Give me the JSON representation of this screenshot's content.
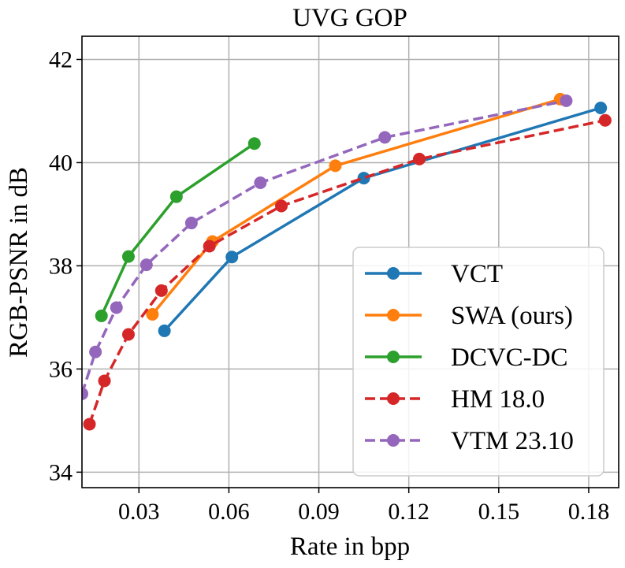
{
  "chart_data": {
    "type": "line",
    "title": "UVG GOP",
    "xlabel": "Rate in bpp",
    "ylabel": "RGB-PSNR in dB",
    "xlim": [
      0.011,
      0.19
    ],
    "ylim": [
      33.7,
      42.45
    ],
    "xticks": [
      0.03,
      0.06,
      0.09,
      0.12,
      0.15,
      0.18
    ],
    "xtick_labels": [
      "0.03",
      "0.06",
      "0.09",
      "0.12",
      "0.15",
      "0.18"
    ],
    "yticks": [
      34,
      36,
      38,
      40,
      42
    ],
    "ytick_labels": [
      "34",
      "36",
      "38",
      "40",
      "42"
    ],
    "grid": true,
    "legend_position": "lower right",
    "series": [
      {
        "name": "VCT",
        "color": "#1f77b4",
        "style": "solid",
        "x": [
          0.0385,
          0.061,
          0.105,
          0.184
        ],
        "y": [
          36.74,
          38.17,
          39.7,
          41.06
        ]
      },
      {
        "name": "SWA (ours)",
        "color": "#ff7f0e",
        "style": "solid",
        "x": [
          0.0345,
          0.0545,
          0.0955,
          0.1705
        ],
        "y": [
          37.06,
          38.47,
          39.94,
          41.23
        ]
      },
      {
        "name": "DCVC-DC",
        "color": "#2ca02c",
        "style": "solid",
        "x": [
          0.0175,
          0.0265,
          0.0425,
          0.0685
        ],
        "y": [
          37.03,
          38.18,
          39.34,
          40.37
        ]
      },
      {
        "name": "HM 18.0",
        "color": "#d62728",
        "style": "dashed",
        "x": [
          0.0135,
          0.0185,
          0.0265,
          0.0375,
          0.0535,
          0.0775,
          0.1235,
          0.1855
        ],
        "y": [
          34.93,
          35.77,
          36.67,
          37.52,
          38.38,
          39.16,
          40.07,
          40.82
        ]
      },
      {
        "name": "VTM 23.10",
        "color": "#9467bd",
        "style": "dashed",
        "x": [
          0.011,
          0.0155,
          0.0225,
          0.0325,
          0.0475,
          0.0705,
          0.112,
          0.1725
        ],
        "y": [
          35.52,
          36.33,
          37.19,
          38.02,
          38.83,
          39.61,
          40.49,
          41.2
        ]
      }
    ]
  }
}
